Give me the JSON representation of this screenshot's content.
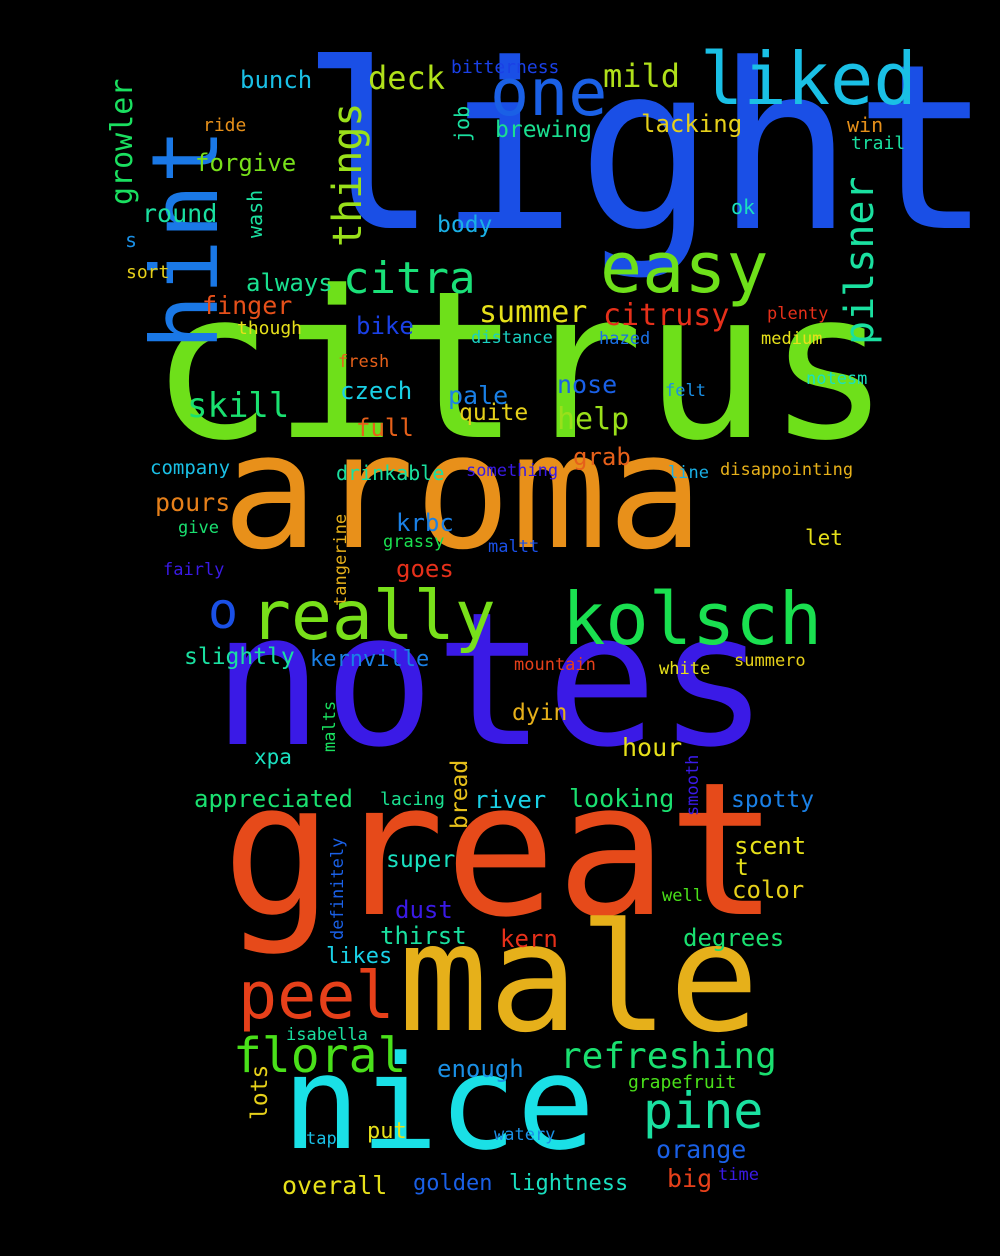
{
  "background": "#000000",
  "words": [
    {
      "text": "light",
      "color": "#1a4fe6"
    },
    {
      "text": "citrus",
      "color": "#6ee01a"
    },
    {
      "text": "aroma",
      "color": "#e8901a"
    },
    {
      "text": "notes",
      "color": "#3a1ae6"
    },
    {
      "text": "great",
      "color": "#e64a1a"
    },
    {
      "text": "male",
      "color": "#e6b01a"
    },
    {
      "text": "nice",
      "color": "#1ae0e6"
    },
    {
      "text": "hint",
      "color": "#1a78e6"
    },
    {
      "text": "liked",
      "color": "#1ac0e6"
    },
    {
      "text": "one",
      "color": "#1a60e6"
    },
    {
      "text": "easy",
      "color": "#6ee01a"
    },
    {
      "text": "kolsch",
      "color": "#1ae050"
    },
    {
      "text": "really",
      "color": "#78e01a"
    },
    {
      "text": "o",
      "color": "#1a50e6"
    },
    {
      "text": "peel",
      "color": "#e6401a"
    },
    {
      "text": "floral",
      "color": "#4ae01a"
    },
    {
      "text": "pine",
      "color": "#1ae0a0"
    },
    {
      "text": "citra",
      "color": "#1ae078"
    },
    {
      "text": "things",
      "color": "#9ae01a"
    },
    {
      "text": "pilsner",
      "color": "#1ae0a0"
    },
    {
      "text": "refreshing",
      "color": "#1ae070"
    },
    {
      "text": "skill",
      "color": "#1ae070"
    },
    {
      "text": "summer",
      "color": "#e6e01a"
    },
    {
      "text": "citrusy",
      "color": "#e6301a"
    },
    {
      "text": "help",
      "color": "#9ae01a"
    },
    {
      "text": "deck",
      "color": "#b0e01a"
    },
    {
      "text": "mild",
      "color": "#b0e01a"
    },
    {
      "text": "bunch",
      "color": "#1ac0e6"
    },
    {
      "text": "growler",
      "color": "#1ae060"
    },
    {
      "text": "bitterness",
      "color": "#1a40e6"
    },
    {
      "text": "ride",
      "color": "#e6901a"
    },
    {
      "text": "brewing",
      "color": "#1ae090"
    },
    {
      "text": "lacking",
      "color": "#e6d01a"
    },
    {
      "text": "win",
      "color": "#e6901a"
    },
    {
      "text": "trail",
      "color": "#1ae0a0"
    },
    {
      "text": "job",
      "color": "#1ae0a0"
    },
    {
      "text": "forgive",
      "color": "#78e01a"
    },
    {
      "text": "wash",
      "color": "#1ae0a0"
    },
    {
      "text": "round",
      "color": "#1ae0a0"
    },
    {
      "text": "body",
      "color": "#1ab0e6"
    },
    {
      "text": "ok",
      "color": "#1ae0c0"
    },
    {
      "text": "s",
      "color": "#1a90e6"
    },
    {
      "text": "sort",
      "color": "#e6d01a"
    },
    {
      "text": "always",
      "color": "#1ae090"
    },
    {
      "text": "finger",
      "color": "#e6501a"
    },
    {
      "text": "though",
      "color": "#e6e01a"
    },
    {
      "text": "bike",
      "color": "#1a40e6"
    },
    {
      "text": "plenty",
      "color": "#e6301a"
    },
    {
      "text": "fresh",
      "color": "#e6601a"
    },
    {
      "text": "distance",
      "color": "#1ad0c0"
    },
    {
      "text": "hazed",
      "color": "#1a70e6"
    },
    {
      "text": "medium",
      "color": "#e6e01a"
    },
    {
      "text": "czech",
      "color": "#1ad0e6"
    },
    {
      "text": "pale",
      "color": "#1a80e6"
    },
    {
      "text": "nose",
      "color": "#1a60e6"
    },
    {
      "text": "felt",
      "color": "#1a90e6"
    },
    {
      "text": "notesm",
      "color": "#1ae0c0"
    },
    {
      "text": "quite",
      "color": "#e6d01a"
    },
    {
      "text": "full",
      "color": "#e6601a"
    },
    {
      "text": "grab",
      "color": "#e6601a"
    },
    {
      "text": "company",
      "color": "#1ac0e6"
    },
    {
      "text": "drinkable",
      "color": "#1ae0a0"
    },
    {
      "text": "something",
      "color": "#3a1ae6"
    },
    {
      "text": "line",
      "color": "#1ab0e6"
    },
    {
      "text": "disappointing",
      "color": "#e6b01a"
    },
    {
      "text": "pours",
      "color": "#e6801a"
    },
    {
      "text": "tangerine",
      "color": "#e6b01a"
    },
    {
      "text": "krbc",
      "color": "#1a80e6"
    },
    {
      "text": "give",
      "color": "#1ae070"
    },
    {
      "text": "grassy",
      "color": "#1ae050"
    },
    {
      "text": "maltt",
      "color": "#1a50e6"
    },
    {
      "text": "let",
      "color": "#e6e01a"
    },
    {
      "text": "fairly",
      "color": "#3a1ae6"
    },
    {
      "text": "goes",
      "color": "#e6301a"
    },
    {
      "text": "slightly",
      "color": "#1ae0a0"
    },
    {
      "text": "kernville",
      "color": "#1a80e6"
    },
    {
      "text": "mountain",
      "color": "#e6401a"
    },
    {
      "text": "white",
      "color": "#e6e01a"
    },
    {
      "text": "summero",
      "color": "#e6d01a"
    },
    {
      "text": "malts",
      "color": "#1ae060"
    },
    {
      "text": "dyin",
      "color": "#e6b01a"
    },
    {
      "text": "hour",
      "color": "#e6e01a"
    },
    {
      "text": "xpa",
      "color": "#1ae0c0"
    },
    {
      "text": "bread",
      "color": "#e6c01a"
    },
    {
      "text": "smooth",
      "color": "#3a1ae6"
    },
    {
      "text": "appreciated",
      "color": "#1ae070"
    },
    {
      "text": "lacing",
      "color": "#1ae090"
    },
    {
      "text": "river",
      "color": "#1ad0e6"
    },
    {
      "text": "looking",
      "color": "#1ae070"
    },
    {
      "text": "spotty",
      "color": "#1a80e6"
    },
    {
      "text": "definitely",
      "color": "#1a60e6"
    },
    {
      "text": "super",
      "color": "#1ae0c0"
    },
    {
      "text": "scent",
      "color": "#e6e01a"
    },
    {
      "text": "t",
      "color": "#e6e01a"
    },
    {
      "text": "color",
      "color": "#e6d01a"
    },
    {
      "text": "well",
      "color": "#4ae01a"
    },
    {
      "text": "dust",
      "color": "#3a1ae6"
    },
    {
      "text": "thirst",
      "color": "#1ae0a0"
    },
    {
      "text": "kern",
      "color": "#e6301a"
    },
    {
      "text": "degrees",
      "color": "#1ae070"
    },
    {
      "text": "likes",
      "color": "#1ad0e6"
    },
    {
      "text": "isabella",
      "color": "#1ae0a0"
    },
    {
      "text": "enough",
      "color": "#1a90e6"
    },
    {
      "text": "grapefruit",
      "color": "#4ae01a"
    },
    {
      "text": "lots",
      "color": "#e6d01a"
    },
    {
      "text": "tap",
      "color": "#1ac0e6"
    },
    {
      "text": "put",
      "color": "#e6e01a"
    },
    {
      "text": "watery",
      "color": "#1a90e6"
    },
    {
      "text": "orange",
      "color": "#1a60e6"
    },
    {
      "text": "overall",
      "color": "#e6e01a"
    },
    {
      "text": "golden",
      "color": "#1a60e6"
    },
    {
      "text": "lightness",
      "color": "#1ae0c0"
    },
    {
      "text": "big",
      "color": "#e6401a"
    },
    {
      "text": "time",
      "color": "#3a1ae6"
    }
  ]
}
